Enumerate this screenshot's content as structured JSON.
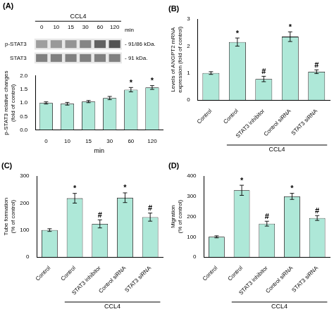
{
  "chart_data": [
    {
      "type": "blot",
      "title": "(A)",
      "xlabel": "min",
      "categories": [
        "0",
        "10",
        "15",
        "30",
        "60",
        "120"
      ],
      "rows": [
        "p-STAT3",
        "STAT3"
      ],
      "cells": [
        [
          0.62,
          0.6,
          0.58,
          0.52,
          0.38,
          0.32
        ],
        [
          0.5,
          0.5,
          0.5,
          0.5,
          0.5,
          0.5
        ]
      ],
      "annotations": [
        {
          "text": "CCL4",
          "from": 0,
          "to": 5
        },
        {
          "text": "- 91/86 kDa.",
          "row": 0
        },
        {
          "text": "- 91 kDa.",
          "row": 1
        }
      ]
    },
    {
      "type": "bar",
      "categories": [
        "0",
        "10",
        "15",
        "30",
        "60",
        "120"
      ],
      "values": [
        1.0,
        0.97,
        1.05,
        1.18,
        1.49,
        1.57
      ],
      "errors": [
        0.04,
        0.05,
        0.04,
        0.06,
        0.08,
        0.07
      ],
      "color": "#aee8d8",
      "xlabel": "min",
      "ylabel": "p-STAT3 relative changes\n(fold of control)",
      "ylim": [
        0.0,
        2.0
      ],
      "yticks": [
        {
          "value": 0,
          "label": "0.0"
        },
        0.5,
        {
          "value": 1,
          "label": "1.0"
        },
        1.5,
        {
          "value": 2,
          "label": "2.0"
        }
      ],
      "grid": false,
      "annotations": [
        {
          "text": "*",
          "at": 4
        },
        {
          "text": "*",
          "at": 5
        }
      ]
    },
    {
      "type": "bar",
      "title": "(B)",
      "categories": [
        "Control",
        "Control",
        "STAT3 inhibitor",
        "Control siRNA",
        "STAT3 siRNA"
      ],
      "values": [
        1.0,
        2.15,
        0.78,
        2.35,
        1.05
      ],
      "errors": [
        0.05,
        0.15,
        0.1,
        0.18,
        0.07
      ],
      "color": "#aee8d8",
      "ylabel": "Levels of ANGPT2 mRNA\nexpression (fold of control)",
      "ylim": [
        0,
        3
      ],
      "yticks": [
        0,
        1,
        2,
        3
      ],
      "grid": false,
      "annotations": [
        {
          "text": "*",
          "at": 1
        },
        {
          "text": "#",
          "at": 2
        },
        {
          "text": "*",
          "at": 3
        },
        {
          "text": "#",
          "at": 4
        },
        {
          "text": "CCL4",
          "from": 1,
          "to": 4
        }
      ]
    },
    {
      "type": "bar",
      "title": "(C)",
      "categories": [
        "Control",
        "Control",
        "STAT3 inhibitor",
        "Control siRNA",
        "STAT3 siRNA"
      ],
      "values": [
        100,
        218,
        123,
        220,
        148
      ],
      "errors": [
        5,
        18,
        15,
        18,
        15
      ],
      "color": "#aee8d8",
      "ylabel": "Tube formation\n(% of control)",
      "ylim": [
        0,
        300
      ],
      "yticks": [
        0,
        100,
        200,
        300
      ],
      "grid": false,
      "annotations": [
        {
          "text": "*",
          "at": 1
        },
        {
          "text": "#",
          "at": 2
        },
        {
          "text": "*",
          "at": 3
        },
        {
          "text": "#",
          "at": 4
        },
        {
          "text": "CCL4",
          "from": 1,
          "to": 4
        }
      ]
    },
    {
      "type": "bar",
      "title": "(D)",
      "categories": [
        "Control",
        "Control",
        "STAT3 inhibitor",
        "Control siRNA",
        "STAT3 siRNA"
      ],
      "values": [
        100,
        330,
        165,
        300,
        193
      ],
      "errors": [
        5,
        25,
        12,
        15,
        12
      ],
      "color": "#aee8d8",
      "ylabel": "Migration\n(% of control)",
      "ylim": [
        0,
        400
      ],
      "yticks": [
        0,
        100,
        200,
        300,
        400
      ],
      "grid": false,
      "annotations": [
        {
          "text": "*",
          "at": 1
        },
        {
          "text": "#",
          "at": 2
        },
        {
          "text": "*",
          "at": 3
        },
        {
          "text": "#",
          "at": 4
        },
        {
          "text": "CCL4",
          "from": 1,
          "to": 4
        }
      ]
    }
  ]
}
